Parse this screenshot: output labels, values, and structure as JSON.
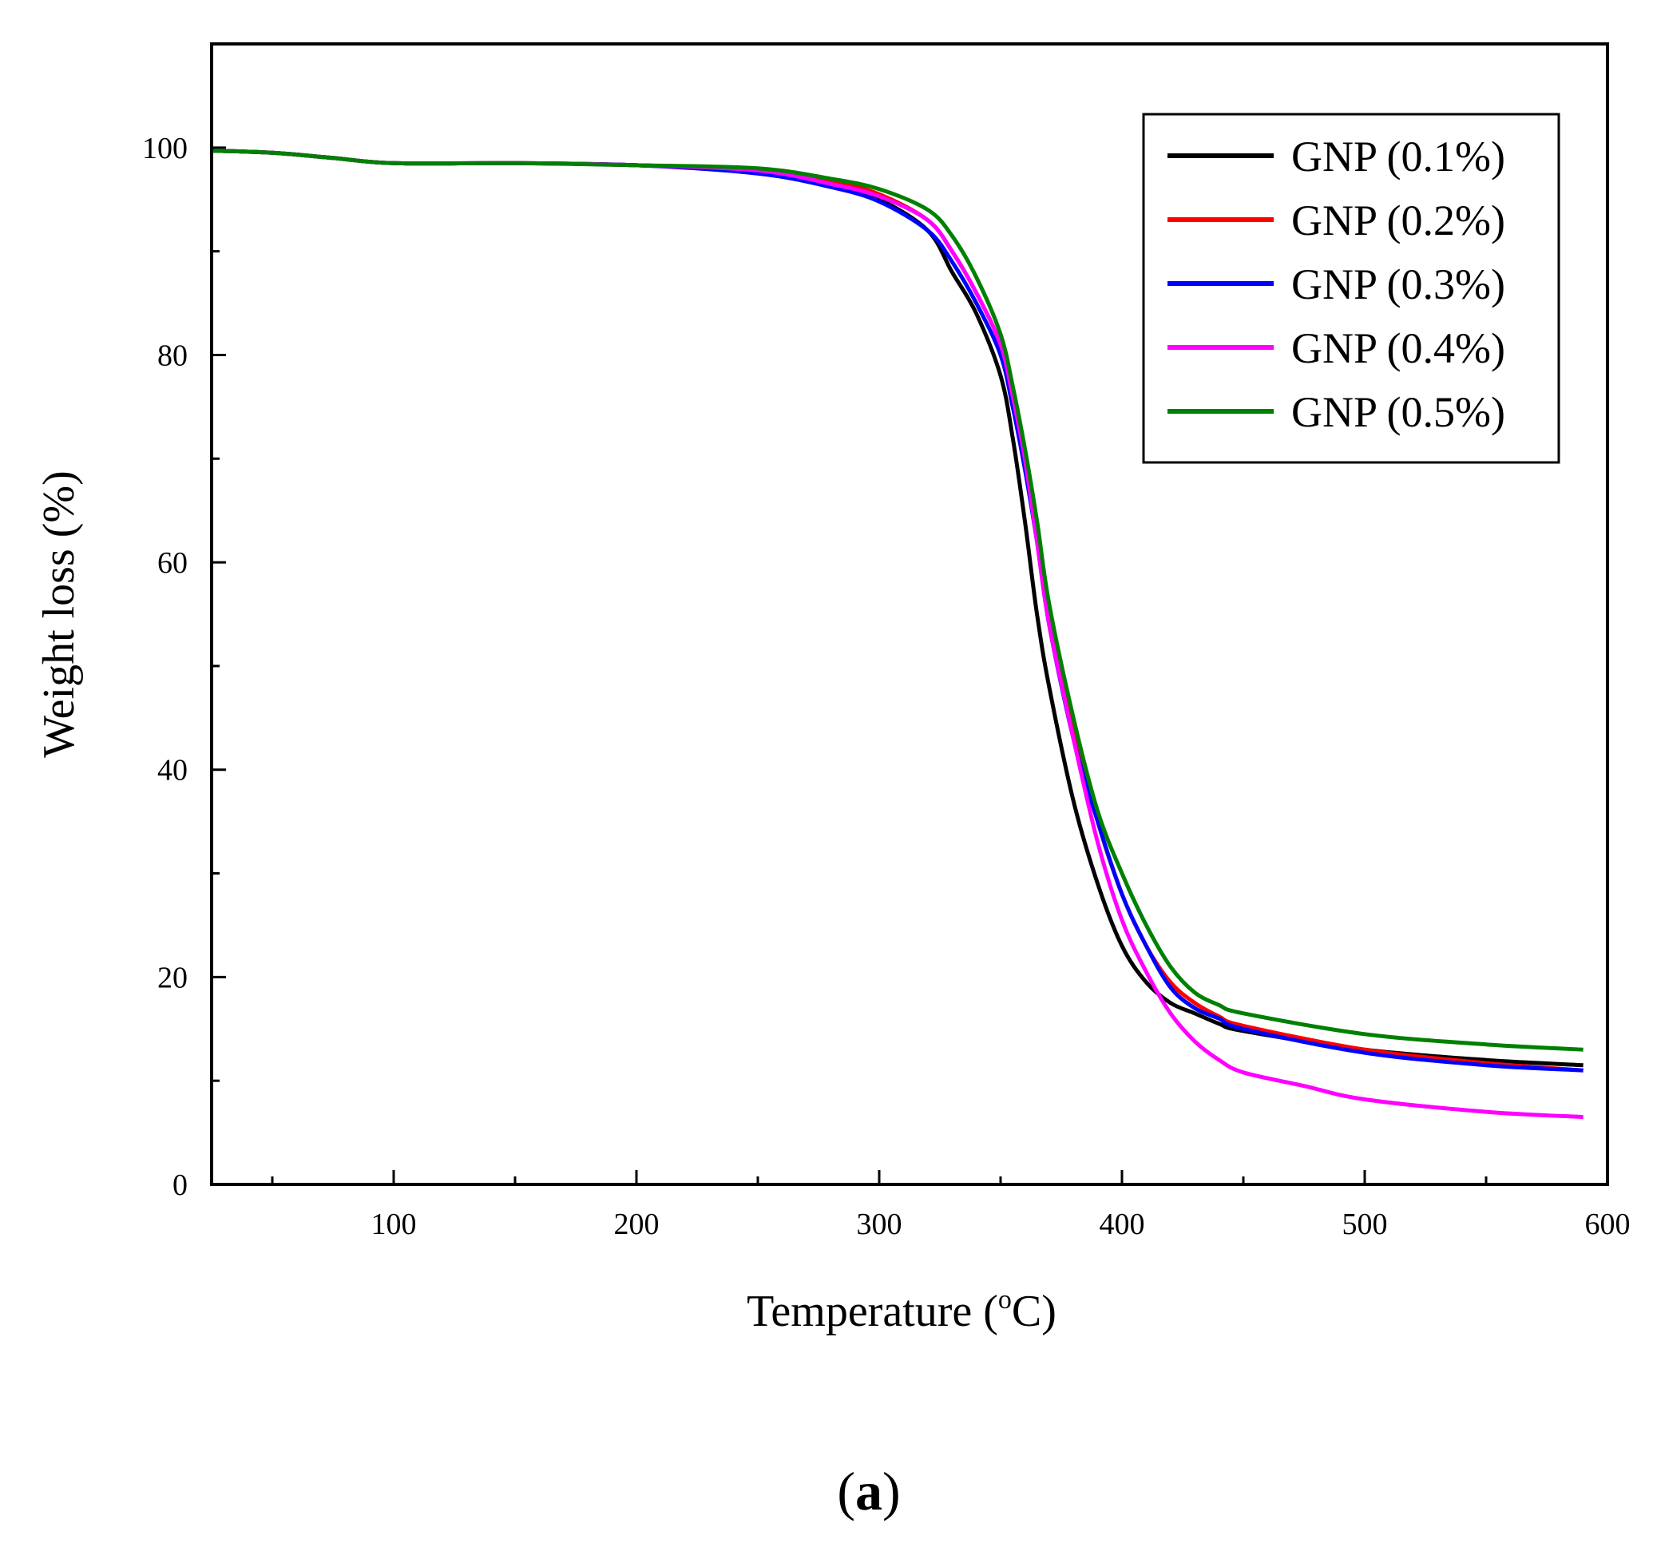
{
  "chart_data": {
    "type": "line",
    "title": "",
    "xlabel_main": "Temperature (",
    "xlabel_sup": "o",
    "xlabel_tail": "C)",
    "ylabel": "Weight loss (%)",
    "xlim": [
      25,
      600
    ],
    "ylim": [
      0,
      110
    ],
    "x_ticks": [
      100,
      200,
      300,
      400,
      500,
      600
    ],
    "x_minor_ticks": [
      50,
      150,
      250,
      350,
      450,
      550
    ],
    "y_ticks": [
      0,
      20,
      40,
      60,
      80,
      100
    ],
    "y_minor_ticks": [
      10,
      30,
      50,
      70,
      90
    ],
    "legend_position": "top-right",
    "panel_label_open": "(",
    "panel_label_letter": "a",
    "panel_label_close": ")",
    "series": [
      {
        "name": "GNP (0.1%)",
        "color": "#000000",
        "x": [
          25,
          50,
          75,
          100,
          150,
          200,
          250,
          280,
          300,
          320,
          330,
          340,
          350,
          355,
          360,
          365,
          370,
          380,
          390,
          400,
          410,
          420,
          430,
          440,
          450,
          500,
          550,
          590
        ],
        "y": [
          99.7,
          99.5,
          99.0,
          98.5,
          98.5,
          98.3,
          97.8,
          96.5,
          95,
          92,
          88,
          84,
          78,
          72,
          64,
          55,
          48,
          37,
          29,
          23,
          19.5,
          17.5,
          16.5,
          15.5,
          14.8,
          13.0,
          12.0,
          11.5
        ]
      },
      {
        "name": "GNP (0.2%)",
        "color": "#ff0000",
        "x": [
          25,
          50,
          75,
          100,
          150,
          200,
          250,
          280,
          300,
          320,
          330,
          340,
          350,
          355,
          360,
          365,
          370,
          380,
          390,
          400,
          410,
          420,
          430,
          440,
          450,
          500,
          550,
          590
        ],
        "y": [
          99.7,
          99.5,
          99.0,
          98.5,
          98.5,
          98.3,
          97.8,
          96.8,
          95.5,
          93,
          90,
          86,
          81,
          76,
          70,
          63,
          55,
          44,
          35,
          28,
          23,
          19.5,
          17.5,
          16.2,
          15.3,
          13.0,
          11.7,
          11.0
        ]
      },
      {
        "name": "GNP (0.3%)",
        "color": "#0000ff",
        "x": [
          25,
          50,
          75,
          100,
          150,
          200,
          250,
          280,
          300,
          320,
          330,
          340,
          350,
          355,
          360,
          365,
          370,
          380,
          390,
          400,
          410,
          420,
          430,
          440,
          450,
          500,
          550,
          590
        ],
        "y": [
          99.7,
          99.5,
          99.0,
          98.5,
          98.5,
          98.3,
          97.5,
          96.2,
          94.8,
          92,
          89,
          85,
          80,
          75,
          69,
          62,
          54,
          43,
          35,
          28,
          23,
          19,
          17,
          16,
          15.0,
          12.7,
          11.5,
          11.0
        ]
      },
      {
        "name": "GNP (0.4%)",
        "color": "#ff00ff",
        "x": [
          25,
          50,
          75,
          100,
          150,
          200,
          250,
          280,
          300,
          320,
          330,
          340,
          350,
          355,
          360,
          365,
          370,
          380,
          390,
          400,
          410,
          420,
          430,
          440,
          450,
          475,
          500,
          550,
          590
        ],
        "y": [
          99.7,
          99.5,
          99.0,
          98.5,
          98.5,
          98.3,
          97.8,
          96.5,
          95.3,
          93,
          90,
          86,
          81,
          76,
          70,
          62,
          54,
          43,
          33,
          25.5,
          20.5,
          16.5,
          13.8,
          12.0,
          10.8,
          9.5,
          8.2,
          7.0,
          6.5
        ]
      },
      {
        "name": "GNP (0.5%)",
        "color": "#008000",
        "x": [
          25,
          50,
          75,
          100,
          150,
          200,
          250,
          280,
          300,
          320,
          330,
          340,
          350,
          355,
          360,
          365,
          370,
          380,
          390,
          400,
          410,
          420,
          430,
          440,
          450,
          500,
          550,
          590
        ],
        "y": [
          99.7,
          99.5,
          99.0,
          98.5,
          98.5,
          98.3,
          98.0,
          97.0,
          96,
          94,
          91.5,
          87.5,
          82,
          77,
          71,
          64,
          56,
          45,
          36,
          30,
          25,
          21,
          18.5,
          17.3,
          16.5,
          14.5,
          13.5,
          13.0
        ]
      }
    ]
  }
}
